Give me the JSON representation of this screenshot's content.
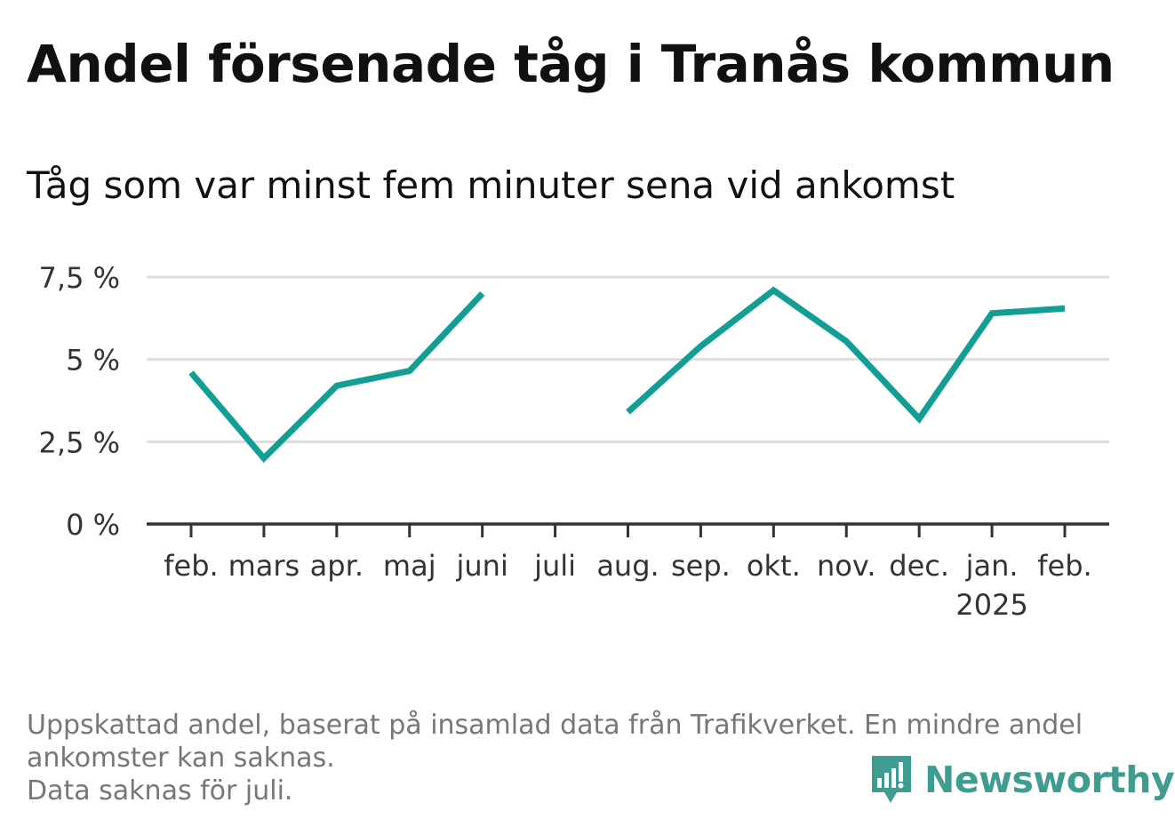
{
  "title": "Andel försenade tåg i Tranås kommun",
  "subtitle": "Tåg som var minst fem minuter sena vid ankomst",
  "footnote": [
    "Uppskattad andel, baserat på insamlad data från Trafikverket. En mindre andel",
    "ankomster kan saknas.",
    "Data saknas för juli."
  ],
  "brand": {
    "name": "Newsworthy",
    "icon": "newsworthy-logo-icon",
    "color": "#3f9c90"
  },
  "colors": {
    "line": "#129e94",
    "grid": "#dddddd",
    "axis": "#333333",
    "text": "#333333"
  },
  "chart_data": {
    "type": "line",
    "title": "Andel försenade tåg i Tranås kommun",
    "subtitle": "Tåg som var minst fem minuter sena vid ankomst",
    "categories": [
      "feb.",
      "mars",
      "apr.",
      "maj",
      "juni",
      "juli",
      "aug.",
      "sep.",
      "okt.",
      "nov.",
      "dec.",
      "jan.",
      "feb."
    ],
    "year_labels": {
      "11": "2025"
    },
    "series": [
      {
        "values": [
          4.6,
          2.0,
          4.2,
          4.65,
          7.0,
          null,
          3.4,
          5.4,
          7.1,
          5.55,
          3.2,
          6.4,
          6.55
        ]
      }
    ],
    "ylim": [
      0,
      7.5
    ],
    "yticks": [
      0,
      2.5,
      5,
      7.5
    ],
    "ytick_labels": [
      "0 %",
      "2,5 %",
      "5 %",
      "7,5 %"
    ],
    "grid": true,
    "legend": "none"
  }
}
